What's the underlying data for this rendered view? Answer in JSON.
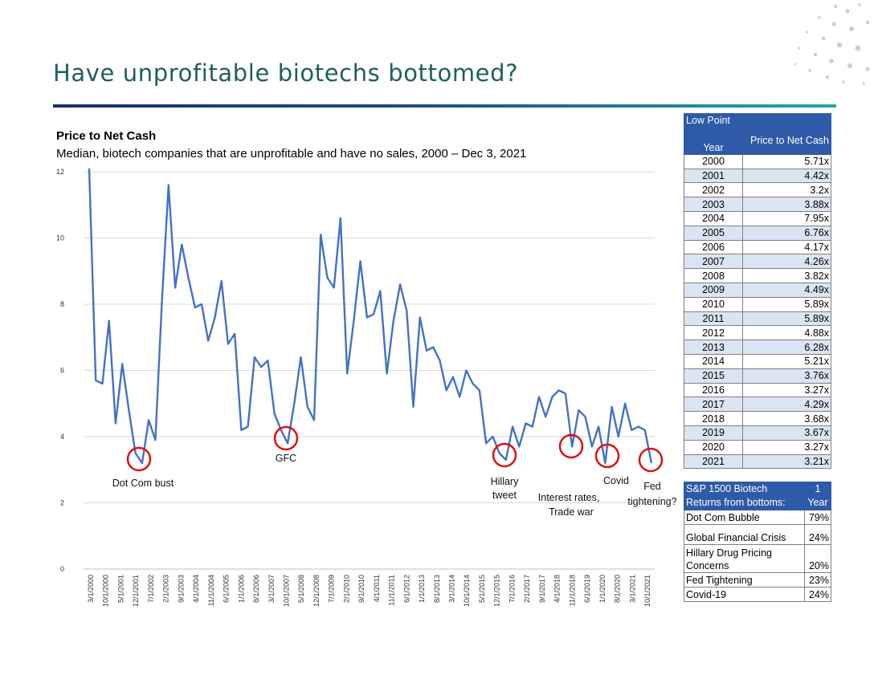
{
  "page": {
    "title": "Have unprofitable biotechs bottomed?"
  },
  "chart_data": {
    "type": "line",
    "title": "Price to Net Cash",
    "subtitle": "Median, biotech companies that are unprofitable and have no sales, 2000 – Dec 3, 2021",
    "xlabel": "",
    "ylabel": "",
    "ylim": [
      0,
      12
    ],
    "yticks": [
      "0",
      "2",
      "4",
      "6",
      "8",
      "10",
      "12"
    ],
    "grid": true,
    "x_tick_labels": [
      "3/1/2000",
      "10/1/2000",
      "5/1/2001",
      "12/1/2001",
      "7/1/2002",
      "2/1/2003",
      "9/1/2003",
      "4/1/2004",
      "11/1/2004",
      "6/1/2005",
      "1/1/2006",
      "8/1/2006",
      "3/1/2007",
      "10/1/2007",
      "5/1/2008",
      "12/1/2008",
      "7/1/2009",
      "2/1/2010",
      "9/1/2010",
      "4/1/2011",
      "11/1/2011",
      "6/1/2012",
      "1/1/2013",
      "8/1/2013",
      "3/1/2014",
      "10/1/2014",
      "5/1/2015",
      "12/1/2015",
      "7/1/2016",
      "2/1/2017",
      "9/1/2017",
      "4/1/2018",
      "11/1/2018",
      "6/1/2019",
      "1/1/2020",
      "8/1/2020",
      "3/1/2021",
      "10/1/2021"
    ],
    "series": [
      {
        "name": "",
        "values": [
          12.1,
          5.7,
          5.6,
          7.5,
          4.4,
          6.2,
          4.8,
          3.5,
          3.2,
          4.5,
          3.9,
          8.1,
          11.6,
          8.5,
          9.8,
          8.8,
          7.9,
          8.0,
          6.9,
          7.6,
          8.7,
          6.8,
          7.1,
          4.2,
          4.3,
          6.4,
          6.1,
          6.3,
          4.7,
          4.2,
          3.8,
          5.0,
          6.4,
          4.9,
          4.5,
          10.1,
          8.8,
          8.5,
          10.6,
          5.9,
          7.5,
          9.3,
          7.6,
          7.7,
          8.4,
          5.9,
          7.5,
          8.6,
          7.8,
          4.9,
          7.6,
          6.6,
          6.7,
          6.3,
          5.4,
          5.8,
          5.2,
          6.0,
          5.6,
          5.4,
          3.8,
          4.0,
          3.5,
          3.3,
          4.3,
          3.7,
          4.4,
          4.3,
          5.2,
          4.6,
          5.2,
          5.4,
          5.3,
          3.7,
          4.8,
          4.6,
          3.7,
          4.3,
          3.2,
          4.9,
          4.0,
          5.0,
          4.2,
          4.3,
          4.2,
          3.2
        ]
      }
    ],
    "annotations": [
      {
        "label": "Dot Com bust"
      },
      {
        "label": "GFC"
      },
      {
        "label": "Hillary\ntweet"
      },
      {
        "label": "Interest rates,\nTrade war"
      },
      {
        "label": "Covid"
      },
      {
        "label": "Fed\ntightening?"
      }
    ],
    "line_color": "#4472c4",
    "circle_color": "#e01010"
  },
  "low_point_table": {
    "title": "Low Point",
    "col_year": "Year",
    "col_value": "Price to Net Cash",
    "rows": [
      {
        "year": "2000",
        "value": "5.71x"
      },
      {
        "year": "2001",
        "value": "4.42x"
      },
      {
        "year": "2002",
        "value": "3.2x"
      },
      {
        "year": "2003",
        "value": "3.88x"
      },
      {
        "year": "2004",
        "value": "7.95x"
      },
      {
        "year": "2005",
        "value": "6.76x"
      },
      {
        "year": "2006",
        "value": "4.17x"
      },
      {
        "year": "2007",
        "value": "4.26x"
      },
      {
        "year": "2008",
        "value": "3.82x"
      },
      {
        "year": "2009",
        "value": "4.49x"
      },
      {
        "year": "2010",
        "value": "5.89x"
      },
      {
        "year": "2011",
        "value": "5.89x"
      },
      {
        "year": "2012",
        "value": "4.88x"
      },
      {
        "year": "2013",
        "value": "6.28x"
      },
      {
        "year": "2014",
        "value": "5.21x"
      },
      {
        "year": "2015",
        "value": "3.76x"
      },
      {
        "year": "2016",
        "value": "3.27x"
      },
      {
        "year": "2017",
        "value": "4.29x"
      },
      {
        "year": "2018",
        "value": "3.68x"
      },
      {
        "year": "2019",
        "value": "3.67x"
      },
      {
        "year": "2020",
        "value": "3.27x"
      },
      {
        "year": "2021",
        "value": "3.21x"
      }
    ]
  },
  "returns_table": {
    "title": "S&P 1500 Biotech Returns from bottoms:",
    "col_value": "1 Year",
    "rows": [
      {
        "label": "Dot Com Bubble",
        "value": "79%"
      },
      {
        "label": "Global Financial Crisis",
        "value": "24%"
      },
      {
        "label": "Hillary Drug Pricing Concerns",
        "value": "20%"
      },
      {
        "label": "Fed Tightening",
        "value": "23%"
      },
      {
        "label": "Covid-19",
        "value": "24%"
      }
    ]
  }
}
